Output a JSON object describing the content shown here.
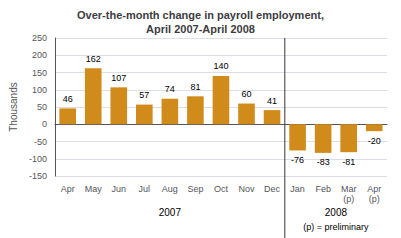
{
  "chart_data": {
    "type": "bar",
    "title": "Over-the-month change in payroll employment,\nApril 2007-April 2008",
    "ylabel": "Thousands",
    "categories": [
      "Apr",
      "May",
      "Jun",
      "Jul",
      "Aug",
      "Sep",
      "Oct",
      "Nov",
      "Dec",
      "Jan",
      "Feb",
      "Mar\n(p)",
      "Apr\n(p)"
    ],
    "values": [
      46,
      162,
      107,
      57,
      74,
      81,
      140,
      60,
      41,
      -76,
      -83,
      -81,
      -20
    ],
    "color": "#D08B1A",
    "ylim": [
      -150,
      250
    ],
    "yticks": [
      -150,
      -100,
      -50,
      0,
      50,
      100,
      150,
      200,
      250
    ],
    "grid": true,
    "data_labels": true,
    "annotations": [
      "2007",
      "2008",
      "(p) = preliminary"
    ]
  }
}
